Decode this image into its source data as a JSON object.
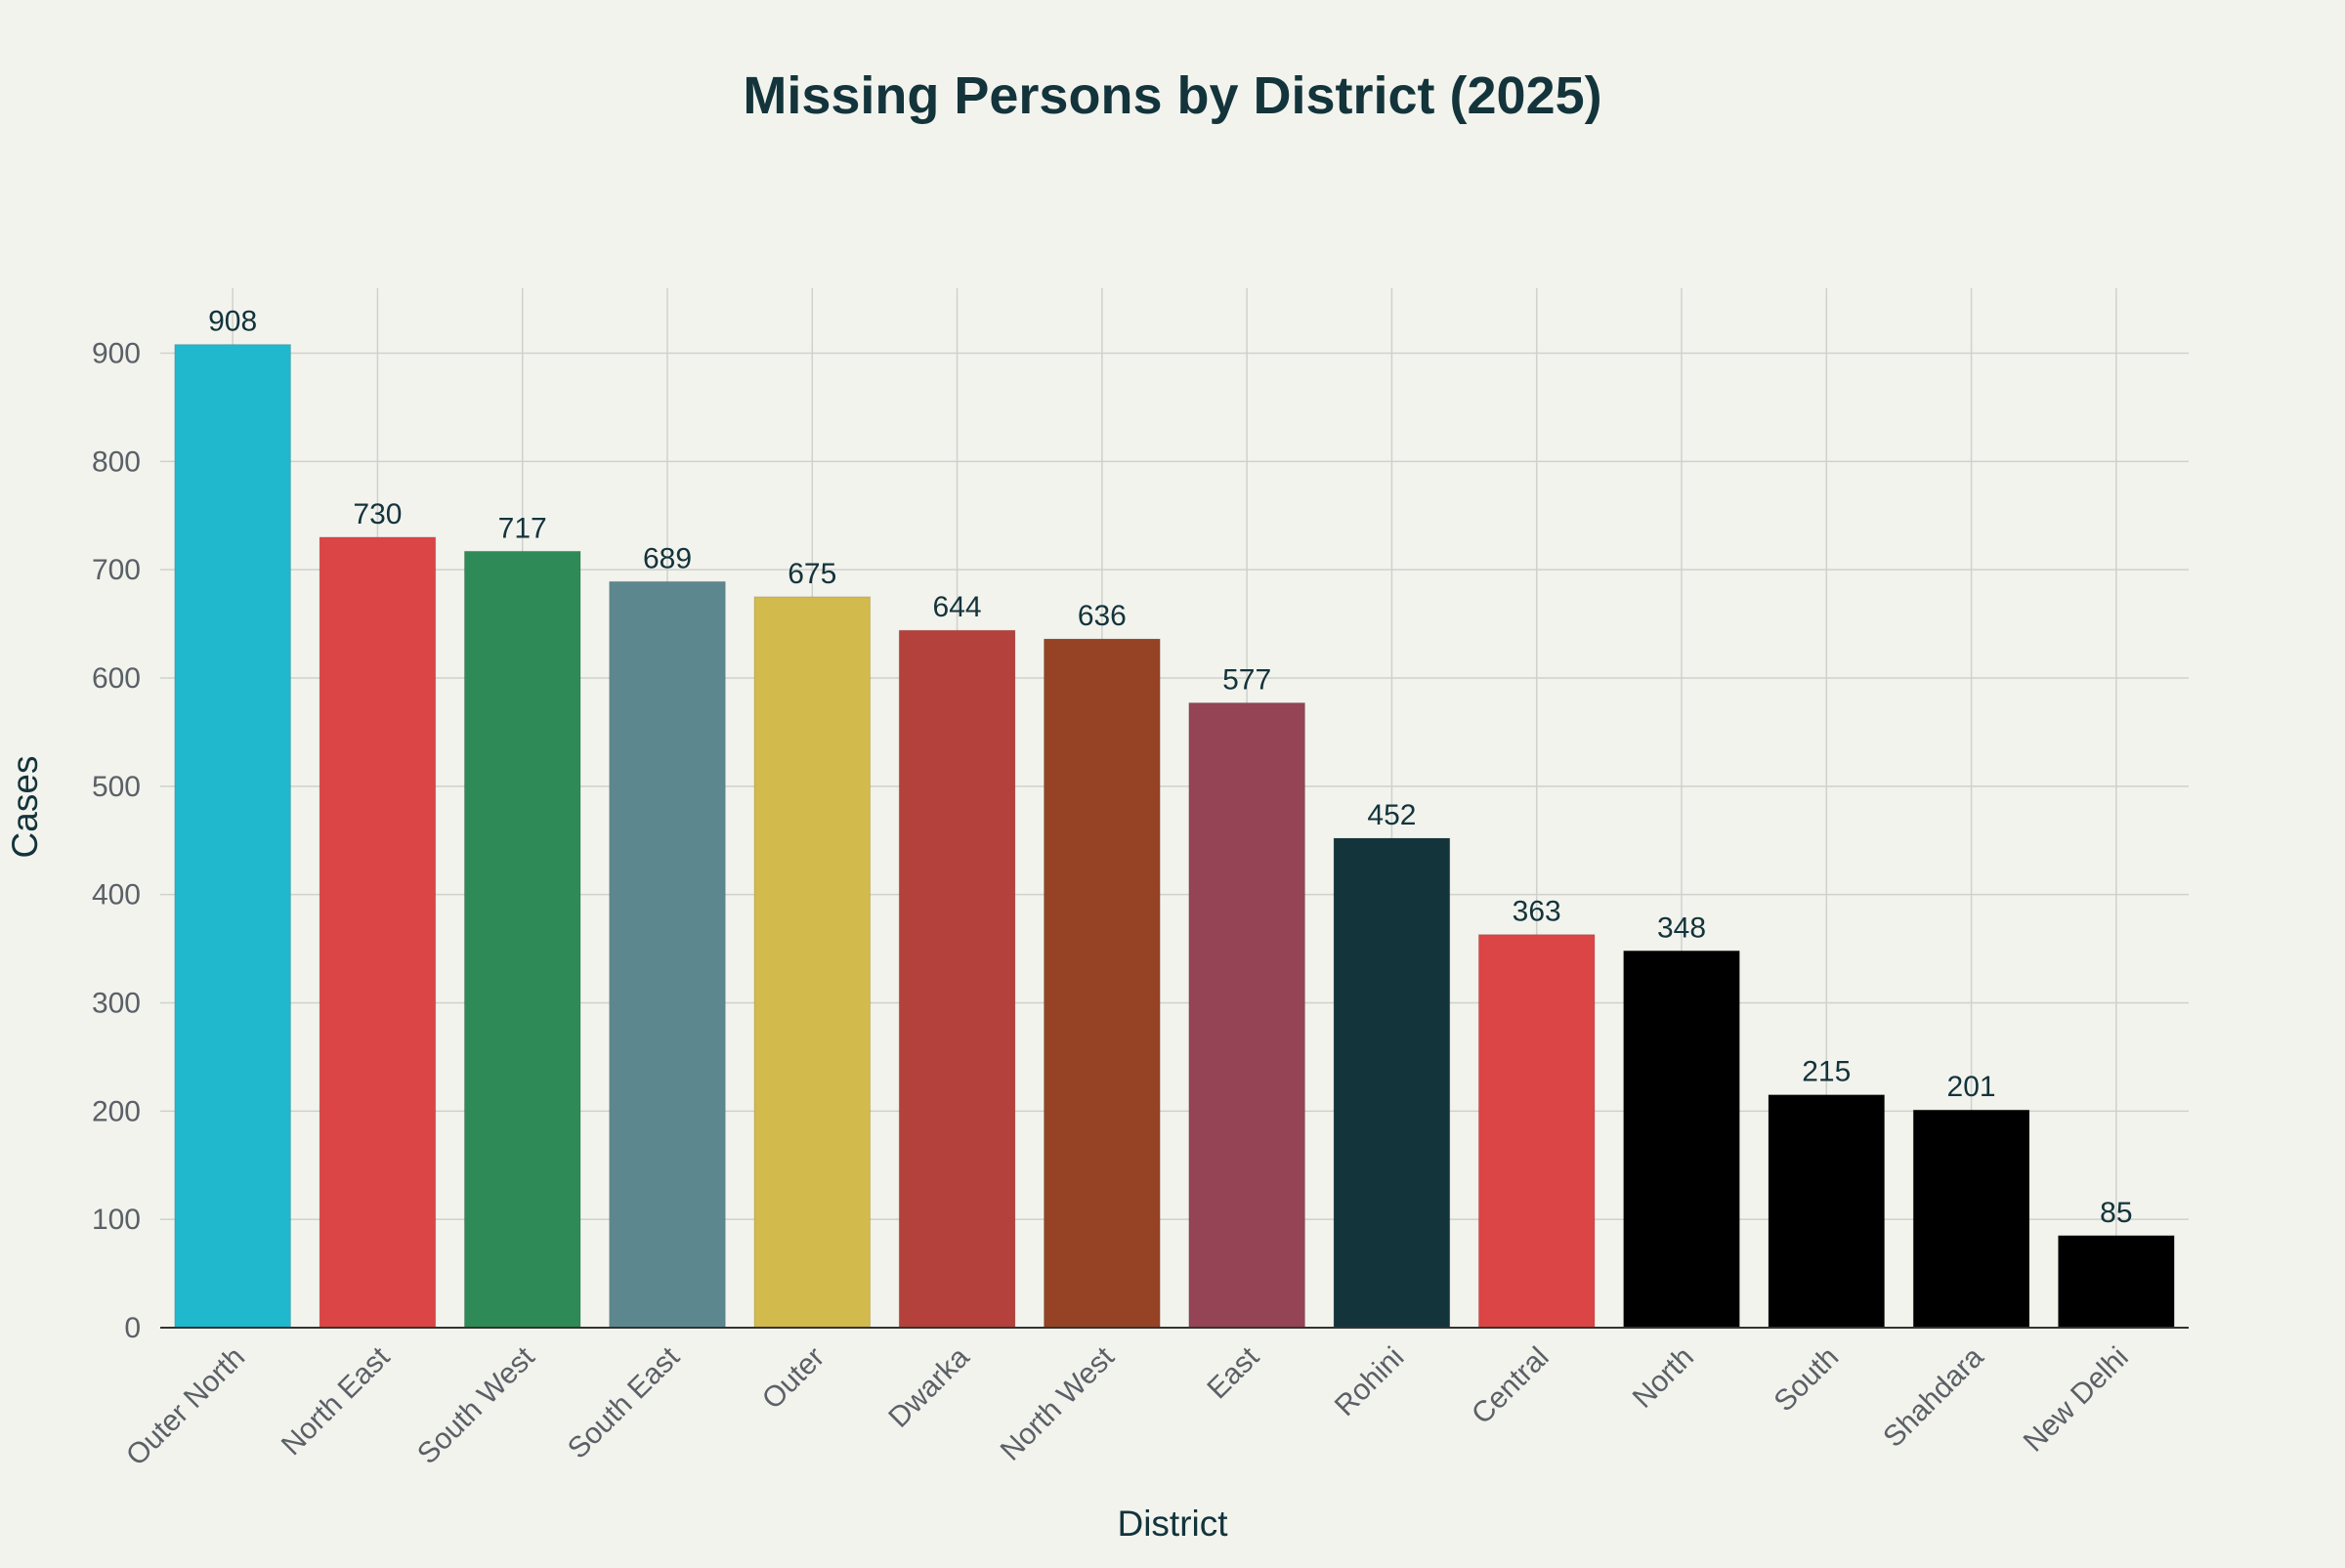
{
  "chart_data": {
    "type": "bar",
    "title": "Missing Persons by District (2025)",
    "xlabel": "District",
    "ylabel": "Cases",
    "categories": [
      "Outer North",
      "North East",
      "South West",
      "South East",
      "Outer",
      "Dwarka",
      "North West",
      "East",
      "Rohini",
      "Central",
      "North",
      "South",
      "Shahdara",
      "New Delhi"
    ],
    "values": [
      908,
      730,
      717,
      689,
      675,
      644,
      636,
      577,
      452,
      363,
      348,
      215,
      201,
      85
    ],
    "colors": [
      "#1fb8cd",
      "#db4545",
      "#2e8b57",
      "#5d878f",
      "#d2ba4c",
      "#b4413c",
      "#964325",
      "#944454",
      "#13343b",
      "#db4545",
      "#000000",
      "#000000",
      "#000000",
      "#000000"
    ],
    "ylim": [
      0,
      960
    ],
    "yticks": [
      0,
      100,
      200,
      300,
      400,
      500,
      600,
      700,
      800,
      900
    ],
    "grid": true,
    "data_labels": true
  }
}
